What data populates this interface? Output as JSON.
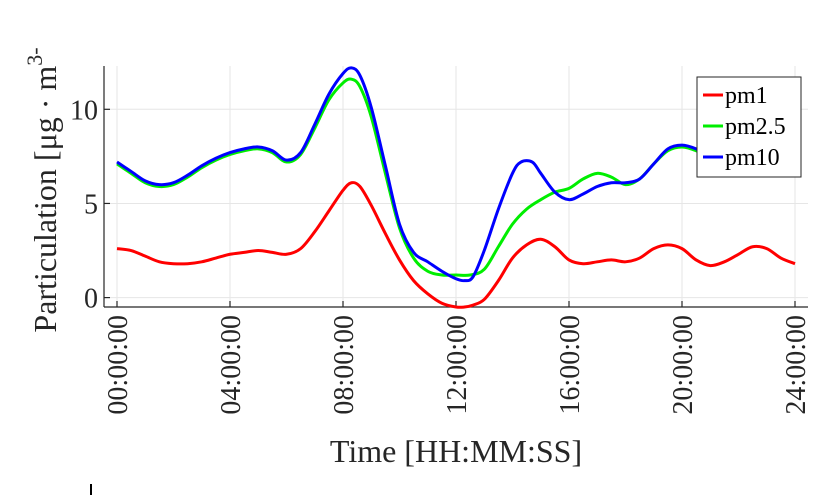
{
  "chart_data": {
    "type": "line",
    "xlabel": "Time [HH:MM:SS]",
    "ylabel": "Particulation [μg · m",
    "ylabel_sup": "3-",
    "x_tick_labels": [
      "00:00:00",
      "04:00:00",
      "08:00:00",
      "12:00:00",
      "16:00:00",
      "20:00:00",
      "24:00:00"
    ],
    "x_ticks_hours": [
      0,
      4,
      8,
      12,
      16,
      20,
      24
    ],
    "y_ticks": [
      0,
      5,
      10
    ],
    "xlim": [
      0,
      24
    ],
    "ylim": [
      -0.5,
      12.3
    ],
    "grid": true,
    "legend_position": "top-right",
    "series": [
      {
        "name": "pm1",
        "color": "#ff0000",
        "x": [
          0,
          0.5,
          1,
          1.5,
          2,
          2.5,
          3,
          3.5,
          4,
          4.5,
          5,
          5.5,
          6,
          6.5,
          7,
          7.5,
          8,
          8.3,
          8.6,
          9,
          9.5,
          10,
          10.5,
          11,
          11.5,
          12,
          12.3,
          12.6,
          13,
          13.5,
          14,
          14.5,
          15,
          15.5,
          16,
          16.5,
          17,
          17.5,
          18,
          18.5,
          19,
          19.5,
          20,
          20.5,
          21,
          21.5,
          22,
          22.5,
          23,
          23.5,
          24
        ],
        "y": [
          2.6,
          2.5,
          2.2,
          1.9,
          1.8,
          1.8,
          1.9,
          2.1,
          2.3,
          2.4,
          2.5,
          2.4,
          2.3,
          2.6,
          3.5,
          4.6,
          5.7,
          6.1,
          5.9,
          4.9,
          3.4,
          2.0,
          0.9,
          0.2,
          -0.3,
          -0.5,
          -0.5,
          -0.4,
          -0.1,
          0.9,
          2.1,
          2.8,
          3.1,
          2.7,
          2.0,
          1.8,
          1.9,
          2.0,
          1.9,
          2.1,
          2.6,
          2.8,
          2.6,
          2.0,
          1.7,
          1.9,
          2.3,
          2.7,
          2.6,
          2.1,
          1.8
        ]
      },
      {
        "name": "pm2.5",
        "color": "#00ee00",
        "x": [
          0,
          0.5,
          1,
          1.5,
          2,
          2.5,
          3,
          3.5,
          4,
          4.5,
          5,
          5.5,
          6,
          6.5,
          7,
          7.5,
          8,
          8.3,
          8.6,
          9,
          9.5,
          10,
          10.5,
          11,
          11.5,
          12,
          12.5,
          13,
          13.5,
          14,
          14.5,
          15,
          15.5,
          16,
          16.5,
          17,
          17.5,
          18,
          18.5,
          19,
          19.5,
          20,
          20.5,
          21
        ],
        "y": [
          7.1,
          6.6,
          6.1,
          5.9,
          6.0,
          6.4,
          6.9,
          7.3,
          7.6,
          7.8,
          7.9,
          7.7,
          7.2,
          7.6,
          9.0,
          10.5,
          11.4,
          11.6,
          11.2,
          9.6,
          6.6,
          3.7,
          2.1,
          1.4,
          1.2,
          1.2,
          1.2,
          1.5,
          2.7,
          3.9,
          4.7,
          5.2,
          5.6,
          5.8,
          6.3,
          6.6,
          6.4,
          6.0,
          6.3,
          7.1,
          7.8,
          8.0,
          7.8,
          7.4
        ]
      },
      {
        "name": "pm10",
        "color": "#0000ff",
        "x": [
          0,
          0.5,
          1,
          1.5,
          2,
          2.5,
          3,
          3.5,
          4,
          4.5,
          5,
          5.5,
          6,
          6.5,
          7,
          7.5,
          8,
          8.3,
          8.6,
          9,
          9.5,
          10,
          10.5,
          11,
          11.5,
          12,
          12.3,
          12.6,
          13,
          13.5,
          14,
          14.3,
          14.7,
          15,
          15.5,
          16,
          16.5,
          17,
          17.5,
          18,
          18.5,
          19,
          19.5,
          20,
          20.5,
          21
        ],
        "y": [
          7.2,
          6.7,
          6.2,
          6.0,
          6.1,
          6.5,
          7.0,
          7.4,
          7.7,
          7.9,
          8.0,
          7.8,
          7.3,
          7.7,
          9.2,
          10.8,
          11.9,
          12.2,
          11.8,
          10.1,
          7.0,
          3.9,
          2.4,
          1.9,
          1.4,
          1.0,
          0.9,
          1.1,
          2.5,
          4.7,
          6.6,
          7.2,
          7.2,
          6.6,
          5.6,
          5.2,
          5.5,
          5.9,
          6.1,
          6.1,
          6.3,
          7.1,
          7.9,
          8.1,
          7.9,
          7.5
        ]
      }
    ]
  }
}
